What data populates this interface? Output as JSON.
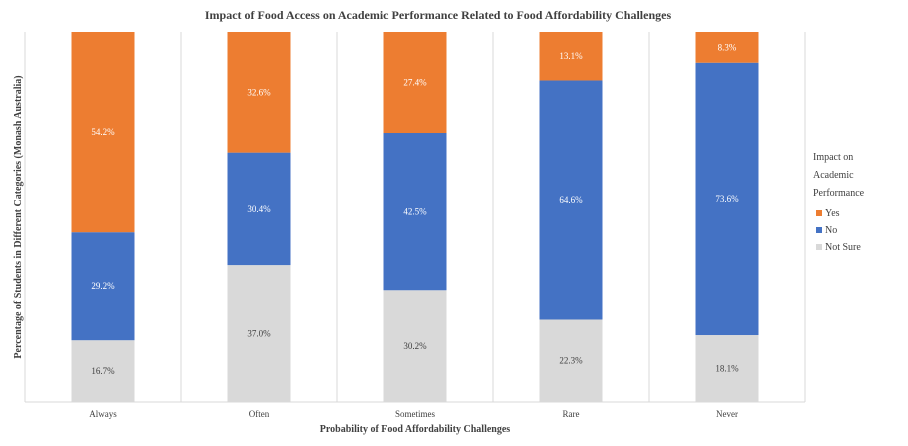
{
  "chart_data": {
    "type": "bar",
    "stacked": true,
    "title": "Impact of Food Access on Academic Performance Related to Food Affordability Challenges",
    "xlabel": "Probability of Food Affordability Challenges",
    "ylabel": "Percentage of Students in Different Categories (Monash Australia)",
    "categories": [
      "Always",
      "Often",
      "Sometimes",
      "Rare",
      "Never"
    ],
    "series": [
      {
        "name": "Not Sure",
        "color": "#d9d9d9",
        "values": [
          16.7,
          37.0,
          30.2,
          22.3,
          18.1
        ],
        "labels": [
          "16.7%",
          "37.0%",
          "30.2%",
          "22.3%",
          "18.1%"
        ]
      },
      {
        "name": "No",
        "color": "#4472c4",
        "values": [
          29.2,
          30.4,
          42.5,
          64.6,
          73.6
        ],
        "labels": [
          "29.2%",
          "30.4%",
          "42.5%",
          "64.6%",
          "73.6%"
        ]
      },
      {
        "name": "Yes",
        "color": "#ed7d31",
        "values": [
          54.2,
          32.6,
          27.4,
          13.1,
          8.3
        ],
        "labels": [
          "54.2%",
          "32.6%",
          "27.4%",
          "13.1%",
          "8.3%"
        ]
      }
    ],
    "legend": {
      "title_lines": [
        "Impact on",
        "Academic",
        "Performance"
      ],
      "order": [
        "Yes",
        "No",
        "Not Sure"
      ],
      "placement": "right"
    },
    "ylim": [
      0,
      100
    ],
    "grid": "vertical"
  }
}
